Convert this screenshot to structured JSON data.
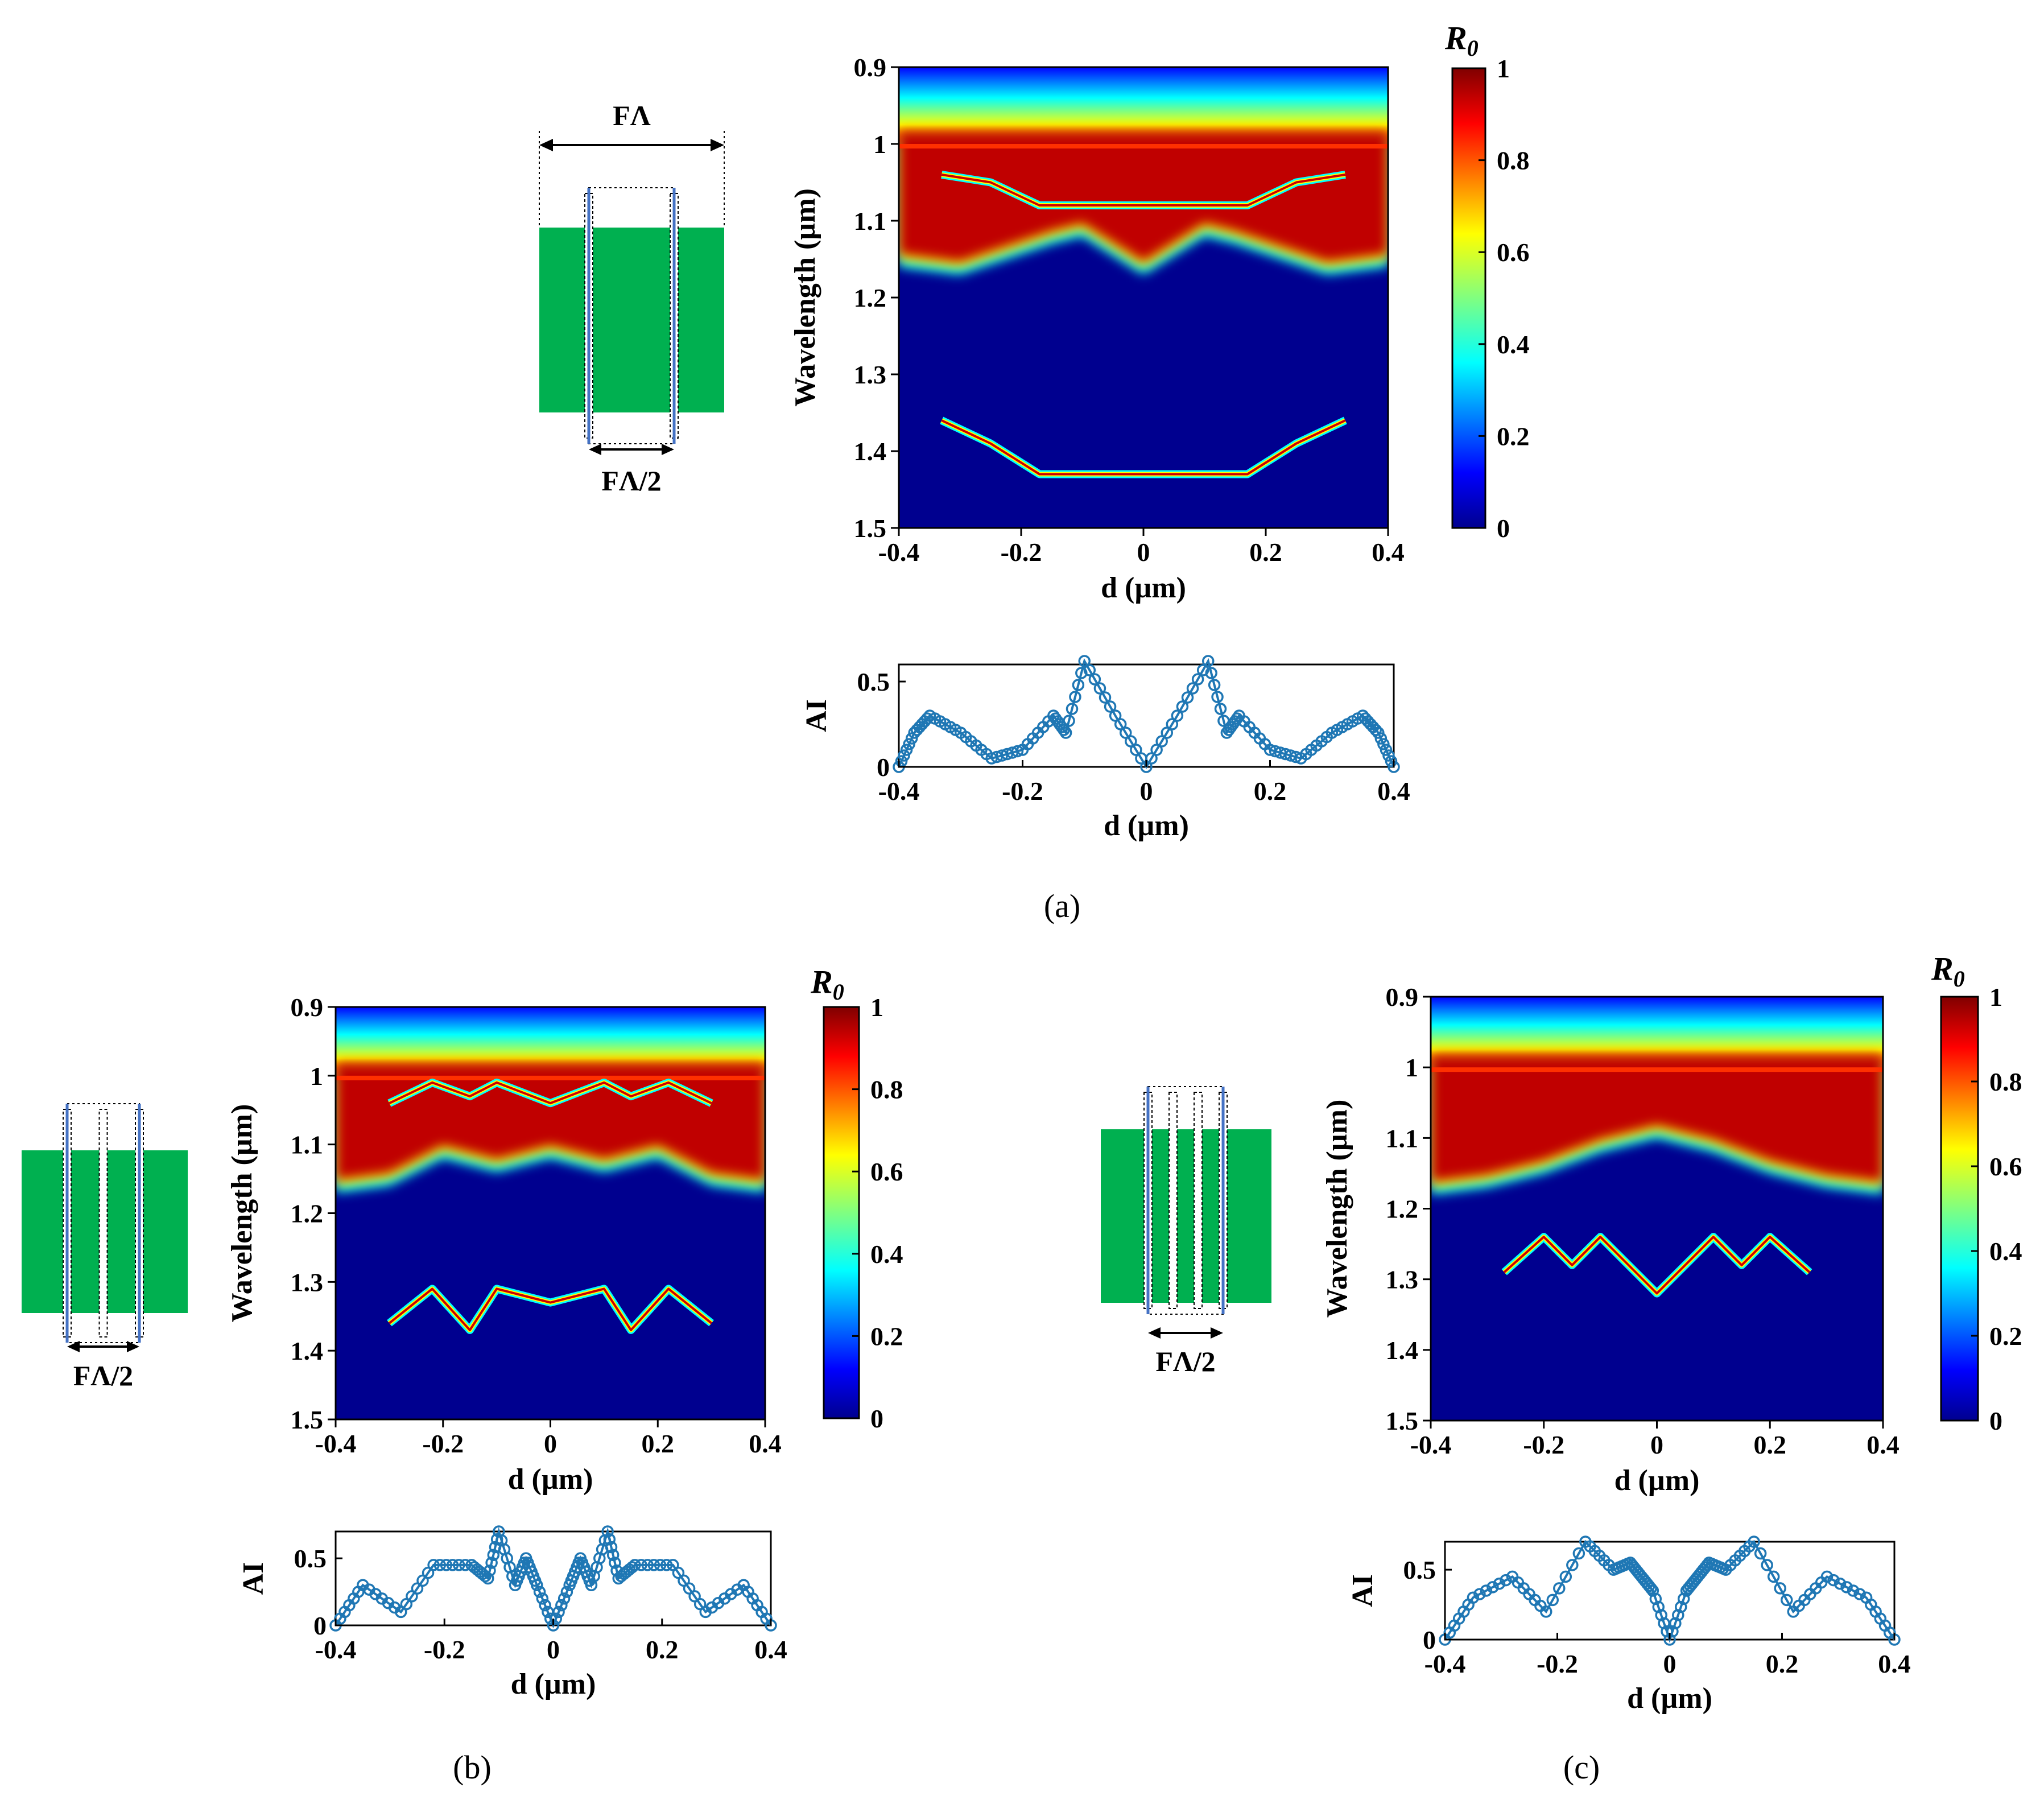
{
  "chart_data": [
    {
      "panel": "a",
      "caption": "(a)",
      "heatmap": {
        "type": "heatmap",
        "xlabel": "d (µm)",
        "ylabel": "Wavelength (µm)",
        "xlim": [
          -0.4,
          0.4
        ],
        "ylim": [
          0.9,
          1.5
        ],
        "xticks": [
          "-0.4",
          "-0.2",
          "0",
          "0.2",
          "0.4"
        ],
        "yticks": [
          "0.9",
          "1",
          "1.1",
          "1.2",
          "1.3",
          "1.4",
          "1.5"
        ],
        "colorbar": {
          "title": "R0",
          "ticks": [
            "0",
            "0.2",
            "0.4",
            "0.6",
            "0.8",
            "1"
          ],
          "range": [
            0,
            1
          ],
          "colormap": "jet"
        },
        "features": [
          {
            "name": "lower band edge",
            "x": [
              -0.4,
              -0.3,
              -0.15,
              -0.1,
              0,
              0.1,
              0.15,
              0.3,
              0.4
            ],
            "y": [
              1.16,
              1.17,
              1.13,
              1.12,
              1.17,
              1.12,
              1.13,
              1.17,
              1.16
            ]
          },
          {
            "name": "upper resonance",
            "x": [
              -0.33,
              -0.25,
              -0.17,
              0.17,
              0.25,
              0.33
            ],
            "y": [
              1.04,
              1.05,
              1.08,
              1.08,
              1.05,
              1.04
            ]
          },
          {
            "name": "lower resonance",
            "x": [
              -0.33,
              -0.25,
              -0.17,
              0.17,
              0.25,
              0.33
            ],
            "y": [
              1.36,
              1.39,
              1.43,
              1.43,
              1.39,
              1.36
            ]
          }
        ]
      },
      "ai": {
        "type": "line",
        "xlabel": "d (µm)",
        "ylabel": "AI",
        "xlim": [
          -0.4,
          0.4
        ],
        "ylim": [
          0,
          0.6
        ],
        "xticks": [
          "-0.4",
          "-0.2",
          "0",
          "0.2",
          "0.4"
        ],
        "yticks": [
          "0",
          "0.5"
        ],
        "x": [
          -0.4,
          -0.375,
          -0.35,
          -0.3,
          -0.25,
          -0.2,
          -0.15,
          -0.13,
          -0.1,
          -0.05,
          0,
          0.05,
          0.1,
          0.13,
          0.15,
          0.2,
          0.25,
          0.3,
          0.35,
          0.375,
          0.4
        ],
        "y": [
          0,
          0.2,
          0.3,
          0.2,
          0.05,
          0.1,
          0.3,
          0.2,
          0.62,
          0.3,
          0,
          0.3,
          0.62,
          0.2,
          0.3,
          0.1,
          0.05,
          0.2,
          0.3,
          0.2,
          0
        ]
      },
      "schematic": {
        "top_label": "FΛ",
        "bottom_label": "FΛ/2",
        "slits": 2
      }
    },
    {
      "panel": "b",
      "caption": "(b)",
      "heatmap": {
        "type": "heatmap",
        "xlabel": "d (µm)",
        "ylabel": "Wavelength (µm)",
        "xlim": [
          -0.4,
          0.4
        ],
        "ylim": [
          0.9,
          1.5
        ],
        "xticks": [
          "-0.4",
          "-0.2",
          "0",
          "0.2",
          "0.4"
        ],
        "yticks": [
          "0.9",
          "1",
          "1.1",
          "1.2",
          "1.3",
          "1.4",
          "1.5"
        ],
        "colorbar": {
          "title": "R0",
          "ticks": [
            "0",
            "0.2",
            "0.4",
            "0.6",
            "0.8",
            "1"
          ],
          "range": [
            0,
            1
          ],
          "colormap": "jet"
        },
        "features": [
          {
            "name": "lower band edge",
            "x": [
              -0.4,
              -0.3,
              -0.2,
              -0.1,
              0,
              0.1,
              0.2,
              0.3,
              0.4
            ],
            "y": [
              1.17,
              1.16,
              1.12,
              1.14,
              1.12,
              1.14,
              1.12,
              1.16,
              1.17
            ]
          },
          {
            "name": "upper resonance",
            "x": [
              -0.3,
              -0.22,
              -0.15,
              -0.1,
              0,
              0.1,
              0.15,
              0.22,
              0.3
            ],
            "y": [
              1.04,
              1.01,
              1.03,
              1.01,
              1.04,
              1.01,
              1.03,
              1.01,
              1.04
            ]
          },
          {
            "name": "lower resonance",
            "x": [
              -0.3,
              -0.22,
              -0.15,
              -0.1,
              0,
              0.1,
              0.15,
              0.22,
              0.3
            ],
            "y": [
              1.36,
              1.31,
              1.37,
              1.31,
              1.33,
              1.31,
              1.37,
              1.31,
              1.36
            ]
          }
        ]
      },
      "ai": {
        "type": "line",
        "xlabel": "d (µm)",
        "ylabel": "AI",
        "xlim": [
          -0.4,
          0.4
        ],
        "ylim": [
          0,
          0.7
        ],
        "xticks": [
          "-0.4",
          "-0.2",
          "0",
          "0.2",
          "0.4"
        ],
        "yticks": [
          "0",
          "0.5"
        ],
        "x": [
          -0.4,
          -0.35,
          -0.28,
          -0.22,
          -0.15,
          -0.12,
          -0.1,
          -0.07,
          -0.05,
          -0.03,
          0,
          0.03,
          0.05,
          0.07,
          0.1,
          0.12,
          0.15,
          0.22,
          0.28,
          0.35,
          0.4
        ],
        "y": [
          0,
          0.3,
          0.1,
          0.45,
          0.45,
          0.35,
          0.7,
          0.3,
          0.5,
          0.3,
          0,
          0.3,
          0.5,
          0.3,
          0.7,
          0.35,
          0.45,
          0.45,
          0.1,
          0.3,
          0
        ]
      },
      "schematic": {
        "bottom_label": "FΛ/2",
        "slits": 3
      }
    },
    {
      "panel": "c",
      "caption": "(c)",
      "heatmap": {
        "type": "heatmap",
        "xlabel": "d (µm)",
        "ylabel": "Wavelength (µm)",
        "xlim": [
          -0.4,
          0.4
        ],
        "ylim": [
          0.9,
          1.5
        ],
        "xticks": [
          "-0.4",
          "-0.2",
          "0",
          "0.2",
          "0.4"
        ],
        "yticks": [
          "0.9",
          "1",
          "1.1",
          "1.2",
          "1.3",
          "1.4",
          "1.5"
        ],
        "colorbar": {
          "title": "R0",
          "ticks": [
            "0",
            "0.2",
            "0.4",
            "0.6",
            "0.8",
            "1"
          ],
          "range": [
            0,
            1
          ],
          "colormap": "jet"
        },
        "features": [
          {
            "name": "lower band edge",
            "x": [
              -0.4,
              -0.3,
              -0.2,
              -0.1,
              0,
              0.1,
              0.2,
              0.3,
              0.4
            ],
            "y": [
              1.18,
              1.17,
              1.15,
              1.12,
              1.1,
              1.12,
              1.15,
              1.17,
              1.18
            ]
          },
          {
            "name": "lower resonance",
            "x": [
              -0.27,
              -0.2,
              -0.15,
              -0.1,
              0,
              0.1,
              0.15,
              0.2,
              0.27
            ],
            "y": [
              1.29,
              1.24,
              1.28,
              1.24,
              1.32,
              1.24,
              1.28,
              1.24,
              1.29
            ]
          }
        ]
      },
      "ai": {
        "type": "line",
        "xlabel": "d (µm)",
        "ylabel": "AI",
        "xlim": [
          -0.4,
          0.4
        ],
        "ylim": [
          0,
          0.7
        ],
        "xticks": [
          "-0.4",
          "-0.2",
          "0",
          "0.2",
          "0.4"
        ],
        "yticks": [
          "0",
          "0.5"
        ],
        "x": [
          -0.4,
          -0.35,
          -0.28,
          -0.22,
          -0.15,
          -0.1,
          -0.07,
          -0.05,
          -0.03,
          0,
          0.03,
          0.05,
          0.07,
          0.1,
          0.15,
          0.22,
          0.28,
          0.35,
          0.4
        ],
        "y": [
          0,
          0.3,
          0.45,
          0.2,
          0.7,
          0.5,
          0.55,
          0.45,
          0.35,
          0,
          0.35,
          0.45,
          0.55,
          0.5,
          0.7,
          0.2,
          0.45,
          0.3,
          0
        ]
      },
      "schematic": {
        "bottom_label": "FΛ/2",
        "slits": 4
      }
    }
  ]
}
